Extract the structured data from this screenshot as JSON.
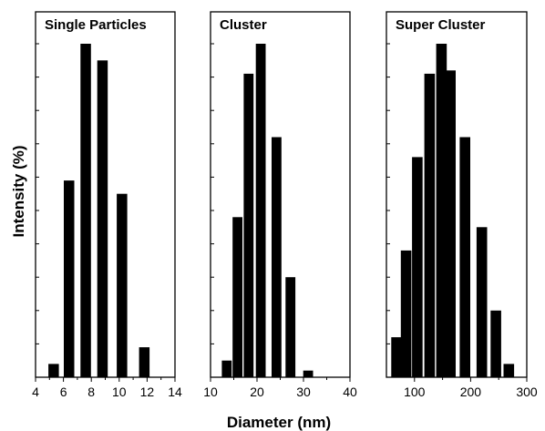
{
  "ylabel": "Intensity (%)",
  "xlabel": "Diameter (nm)",
  "chart_data": [
    {
      "type": "bar",
      "title": "Single Particles",
      "xlim": [
        4,
        14
      ],
      "xticks": [
        "4",
        "6",
        "8",
        "10",
        "12",
        "14"
      ],
      "bars": [
        {
          "x": 5.3,
          "y": 4
        },
        {
          "x": 6.4,
          "y": 59
        },
        {
          "x": 7.6,
          "y": 100
        },
        {
          "x": 8.8,
          "y": 95
        },
        {
          "x": 10.2,
          "y": 55
        },
        {
          "x": 11.8,
          "y": 9
        }
      ],
      "ylim": [
        0,
        100
      ],
      "grid": false
    },
    {
      "type": "bar",
      "title": "Cluster",
      "xlim": [
        10,
        40
      ],
      "xticks": [
        "10",
        "20",
        "30",
        "40"
      ],
      "bars": [
        {
          "x": 13.5,
          "y": 5
        },
        {
          "x": 15.8,
          "y": 48
        },
        {
          "x": 18.2,
          "y": 91
        },
        {
          "x": 20.8,
          "y": 100
        },
        {
          "x": 24.2,
          "y": 72
        },
        {
          "x": 27.2,
          "y": 30
        },
        {
          "x": 31.0,
          "y": 2
        }
      ],
      "ylim": [
        0,
        100
      ],
      "grid": false
    },
    {
      "type": "bar",
      "title": "Super Cluster",
      "xlim": [
        50,
        300
      ],
      "xticks": [
        "100",
        "200",
        "300"
      ],
      "bars": [
        {
          "x": 68,
          "y": 12
        },
        {
          "x": 85,
          "y": 38
        },
        {
          "x": 105,
          "y": 66
        },
        {
          "x": 127,
          "y": 91
        },
        {
          "x": 148,
          "y": 100
        },
        {
          "x": 164,
          "y": 92
        },
        {
          "x": 190,
          "y": 72
        },
        {
          "x": 220,
          "y": 45
        },
        {
          "x": 245,
          "y": 20
        },
        {
          "x": 268,
          "y": 4
        }
      ],
      "ylim": [
        0,
        100
      ],
      "grid": false
    }
  ]
}
